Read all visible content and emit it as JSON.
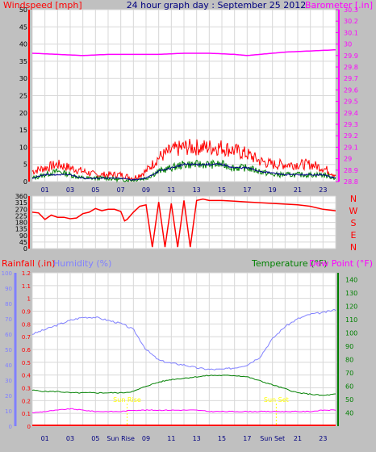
{
  "colors": {
    "background": "#c0c0c0",
    "plot_bg": "#ffffff",
    "wind_speed": "#ff0000",
    "wind_avg": "#00008b",
    "wind_gust_low": "#008000",
    "barometer": "#ff00ff",
    "direction": "#ff0000",
    "rain": "#ff0000",
    "humidity": "#8080ff",
    "temperature": "#008000",
    "dewpoint": "#ff00ff",
    "title": "#000080",
    "sun": "#ffff00",
    "axis_text": "#000000"
  },
  "chart_data": [
    {
      "type": "line",
      "title": "24 hour graph day : September 25 2012",
      "ylabel_left": "Windspeed [mph]",
      "ylabel_right": "Barometer [.in]",
      "x_tick_labels": [
        "01",
        "03",
        "05",
        "07",
        "09",
        "11",
        "13",
        "15",
        "17",
        "19",
        "21",
        "23"
      ],
      "xlim": [
        0,
        24
      ],
      "ylim_left": [
        0,
        50
      ],
      "y_ticks_left": [
        "0",
        "5",
        "10",
        "15",
        "20",
        "25",
        "30",
        "35",
        "40",
        "45",
        "50"
      ],
      "ylim_right": [
        28.8,
        30.3
      ],
      "y_ticks_right": [
        "28.8",
        "28.9",
        "29",
        "29.1",
        "29.2",
        "29.3",
        "29.4",
        "29.5",
        "29.6",
        "29.7",
        "29.8",
        "29.9",
        "30",
        "30.1",
        "30.2",
        "30.3"
      ],
      "grid": true,
      "series": [
        {
          "key": "windspeed",
          "x": [
            0,
            1,
            2,
            3,
            4,
            5,
            6,
            7,
            8,
            9,
            10,
            11,
            12,
            13,
            14,
            15,
            16,
            17,
            18,
            19,
            20,
            21,
            22,
            23,
            24
          ],
          "y": [
            3,
            4,
            5,
            4,
            3,
            2,
            2,
            2,
            1,
            3,
            7,
            9,
            10,
            10,
            10,
            10,
            9,
            8,
            6,
            5,
            5,
            5,
            5,
            4,
            2
          ]
        },
        {
          "key": "wind_avg",
          "x": [
            0,
            1,
            2,
            3,
            4,
            5,
            6,
            7,
            8,
            9,
            10,
            11,
            12,
            13,
            14,
            15,
            16,
            17,
            18,
            19,
            20,
            21,
            22,
            23,
            24
          ],
          "y": [
            1,
            2,
            2,
            2,
            1,
            1,
            1,
            1,
            0.5,
            1,
            3,
            4,
            5,
            5,
            5,
            5,
            4,
            4,
            3,
            2.5,
            2,
            2,
            2,
            2,
            1
          ]
        },
        {
          "key": "wind_low",
          "x": [
            0,
            1,
            2,
            3,
            4,
            5,
            6,
            7,
            8,
            9,
            10,
            11,
            12,
            13,
            14,
            15,
            16,
            17,
            18,
            19,
            20,
            21,
            22,
            23,
            24
          ],
          "y": [
            1,
            2,
            3,
            2,
            1,
            1,
            1,
            0.5,
            0.5,
            1,
            3,
            4,
            5,
            5,
            5,
            5,
            4,
            4,
            3,
            2,
            2,
            2,
            2,
            2,
            1
          ]
        },
        {
          "key": "barometer",
          "x": [
            0,
            2,
            4,
            6,
            8,
            10,
            12,
            14,
            16,
            17,
            18,
            20,
            22,
            24
          ],
          "y": [
            29.92,
            29.91,
            29.9,
            29.91,
            29.91,
            29.91,
            29.92,
            29.92,
            29.91,
            29.9,
            29.91,
            29.93,
            29.94,
            29.95
          ]
        }
      ]
    },
    {
      "type": "line",
      "ylabel_right_letters": [
        "N",
        "W",
        "S",
        "E",
        "N"
      ],
      "xlim": [
        0,
        24
      ],
      "ylim": [
        0,
        360
      ],
      "y_ticks": [
        "0",
        "45",
        "90",
        "135",
        "180",
        "225",
        "270",
        "315",
        "360"
      ],
      "grid": true,
      "series": [
        {
          "key": "direction",
          "x": [
            0,
            0.5,
            1,
            1.5,
            2,
            2.5,
            3,
            3.5,
            4,
            4.5,
            5,
            5.5,
            6,
            6.5,
            7,
            7.3,
            7.5,
            8,
            8.5,
            9,
            9.5,
            10,
            10.5,
            11,
            11.5,
            12,
            12.5,
            13,
            13.5,
            14,
            15,
            16,
            17,
            18,
            19,
            20,
            21,
            22,
            23,
            24
          ],
          "y": [
            250,
            245,
            200,
            230,
            215,
            215,
            205,
            210,
            240,
            250,
            275,
            260,
            270,
            270,
            255,
            190,
            200,
            250,
            290,
            300,
            10,
            320,
            10,
            310,
            10,
            330,
            10,
            330,
            340,
            330,
            330,
            325,
            320,
            315,
            310,
            305,
            300,
            290,
            270,
            260
          ]
        }
      ]
    },
    {
      "type": "line",
      "ylabel_left_rain": "Rainfall (.in)",
      "ylabel_left_hum": "Humidity (%)",
      "ylabel_right_temp": "Temperature (°F)",
      "ylabel_right_dew": "Dew Point (°F)",
      "x_tick_labels": [
        "01",
        "03",
        "05",
        "Sun Rise",
        "09",
        "11",
        "13",
        "15",
        "17",
        "Sun Set",
        "21",
        "23"
      ],
      "sunrise_hour": 7.5,
      "sunset_hour": 19.3,
      "sunrise_label": "Sun Rise",
      "sunset_label": "Sun Set",
      "xlim": [
        0,
        24
      ],
      "ylim_rain": [
        0,
        1.2
      ],
      "y_ticks_rain": [
        "0",
        "0.1",
        "0.2",
        "0.3",
        "0.4",
        "0.5",
        "0.6",
        "0.7",
        "0.8",
        "0.9",
        "1",
        "1.1",
        "1.2"
      ],
      "ylim_hum": [
        0,
        100
      ],
      "y_ticks_hum": [
        "0",
        "10",
        "20",
        "30",
        "40",
        "50",
        "60",
        "70",
        "80",
        "90",
        "100"
      ],
      "ylim_temp": [
        30,
        145
      ],
      "y_ticks_temp": [
        "40",
        "50",
        "60",
        "70",
        "80",
        "90",
        "100",
        "110",
        "120",
        "130",
        "140"
      ],
      "grid": true,
      "series": [
        {
          "key": "humidity",
          "x": [
            0,
            1,
            2,
            3,
            4,
            5,
            6,
            7,
            8,
            9,
            10,
            11,
            12,
            13,
            14,
            15,
            16,
            17,
            18,
            19,
            20,
            21,
            22,
            23,
            24
          ],
          "y": [
            60,
            63,
            66,
            69,
            71,
            71,
            69,
            67,
            63,
            50,
            43,
            41,
            40,
            38,
            37,
            37,
            38,
            40,
            45,
            57,
            65,
            70,
            73,
            74,
            76
          ]
        },
        {
          "key": "temperature",
          "x": [
            0,
            1,
            2,
            3,
            4,
            5,
            6,
            7,
            8,
            9,
            10,
            11,
            12,
            13,
            14,
            15,
            16,
            17,
            18,
            19,
            20,
            21,
            22,
            23,
            24
          ],
          "y": [
            57,
            56,
            56,
            55,
            55,
            55,
            55,
            55,
            56,
            60,
            63,
            65,
            66,
            67,
            68,
            68,
            68,
            67,
            64,
            61,
            58,
            55,
            54,
            53,
            54
          ]
        },
        {
          "key": "dewpoint",
          "x": [
            0,
            1,
            2,
            3,
            4,
            5,
            6,
            7,
            8,
            9,
            10,
            11,
            12,
            13,
            14,
            15,
            16,
            17,
            18,
            19,
            20,
            21,
            22,
            23,
            24
          ],
          "y": [
            40,
            41,
            42,
            43,
            42,
            41,
            41,
            41,
            42,
            42,
            42,
            42,
            42,
            42,
            41,
            41,
            41,
            41,
            41,
            41,
            41,
            41,
            41,
            42,
            42
          ]
        },
        {
          "key": "rain",
          "x": [
            0,
            24
          ],
          "y": [
            0,
            0
          ]
        }
      ]
    }
  ]
}
